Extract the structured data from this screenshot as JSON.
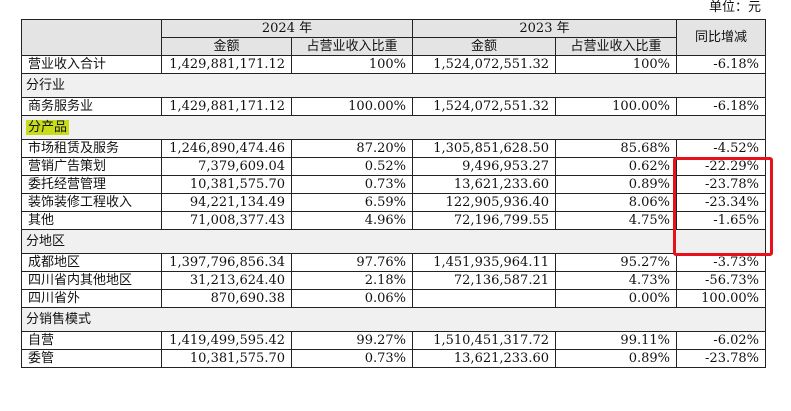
{
  "unit_label": "单位：元",
  "header": {
    "year_2024": "2024 年",
    "year_2023": "2023 年",
    "amount": "金额",
    "share": "占营业收入比重",
    "yoy": "同比增减"
  },
  "total": {
    "label": "营业收入合计",
    "amt2024": "1,429,881,171.12",
    "share2024": "100%",
    "amt2023": "1,524,072,551.32",
    "share2023": "100%",
    "yoy": "-6.18%"
  },
  "sections": {
    "industry": {
      "title": "分行业",
      "rows": [
        {
          "label": "商务服务业",
          "amt2024": "1,429,881,171.12",
          "share2024": "100.00%",
          "amt2023": "1,524,072,551.32",
          "share2023": "100.00%",
          "yoy": "-6.18%"
        }
      ]
    },
    "product": {
      "title": "分产品",
      "rows": [
        {
          "label": "市场租赁及服务",
          "amt2024": "1,246,890,474.46",
          "share2024": "87.20%",
          "amt2023": "1,305,851,628.50",
          "share2023": "85.68%",
          "yoy": "-4.52%"
        },
        {
          "label": "营销广告策划",
          "amt2024": "7,379,609.04",
          "share2024": "0.52%",
          "amt2023": "9,496,953.27",
          "share2023": "0.62%",
          "yoy": "-22.29%"
        },
        {
          "label": "委托经营管理",
          "amt2024": "10,381,575.70",
          "share2024": "0.73%",
          "amt2023": "13,621,233.60",
          "share2023": "0.89%",
          "yoy": "-23.78%"
        },
        {
          "label": "装饰装修工程收入",
          "amt2024": "94,221,134.49",
          "share2024": "6.59%",
          "amt2023": "122,905,936.40",
          "share2023": "8.06%",
          "yoy": "-23.34%"
        },
        {
          "label": "其他",
          "amt2024": "71,008,377.43",
          "share2024": "4.96%",
          "amt2023": "72,196,799.55",
          "share2023": "4.75%",
          "yoy": "-1.65%"
        }
      ]
    },
    "region": {
      "title": "分地区",
      "rows": [
        {
          "label": "成都地区",
          "amt2024": "1,397,796,856.34",
          "share2024": "97.76%",
          "amt2023": "1,451,935,964.11",
          "share2023": "95.27%",
          "yoy": "-3.73%"
        },
        {
          "label": "四川省内其他地区",
          "amt2024": "31,213,624.40",
          "share2024": "2.18%",
          "amt2023": "72,136,587.21",
          "share2023": "4.73%",
          "yoy": "-56.73%"
        },
        {
          "label": "四川省外",
          "amt2024": "870,690.38",
          "share2024": "0.06%",
          "amt2023": "",
          "share2023": "0.00%",
          "yoy": "100.00%"
        }
      ]
    },
    "sales_mode": {
      "title": "分销售模式",
      "rows": [
        {
          "label": "自营",
          "amt2024": "1,419,499,595.42",
          "share2024": "99.27%",
          "amt2023": "1,510,451,317.72",
          "share2023": "99.11%",
          "yoy": "-6.02%"
        },
        {
          "label": "委管",
          "amt2024": "10,381,575.70",
          "share2024": "0.73%",
          "amt2023": "13,621,233.60",
          "share2023": "0.89%",
          "yoy": "-23.78%"
        }
      ]
    }
  },
  "colors": {
    "highlight": "#c8dc1c",
    "annotation_box": "#e8101a",
    "header_bg": "#e4e4e4"
  }
}
